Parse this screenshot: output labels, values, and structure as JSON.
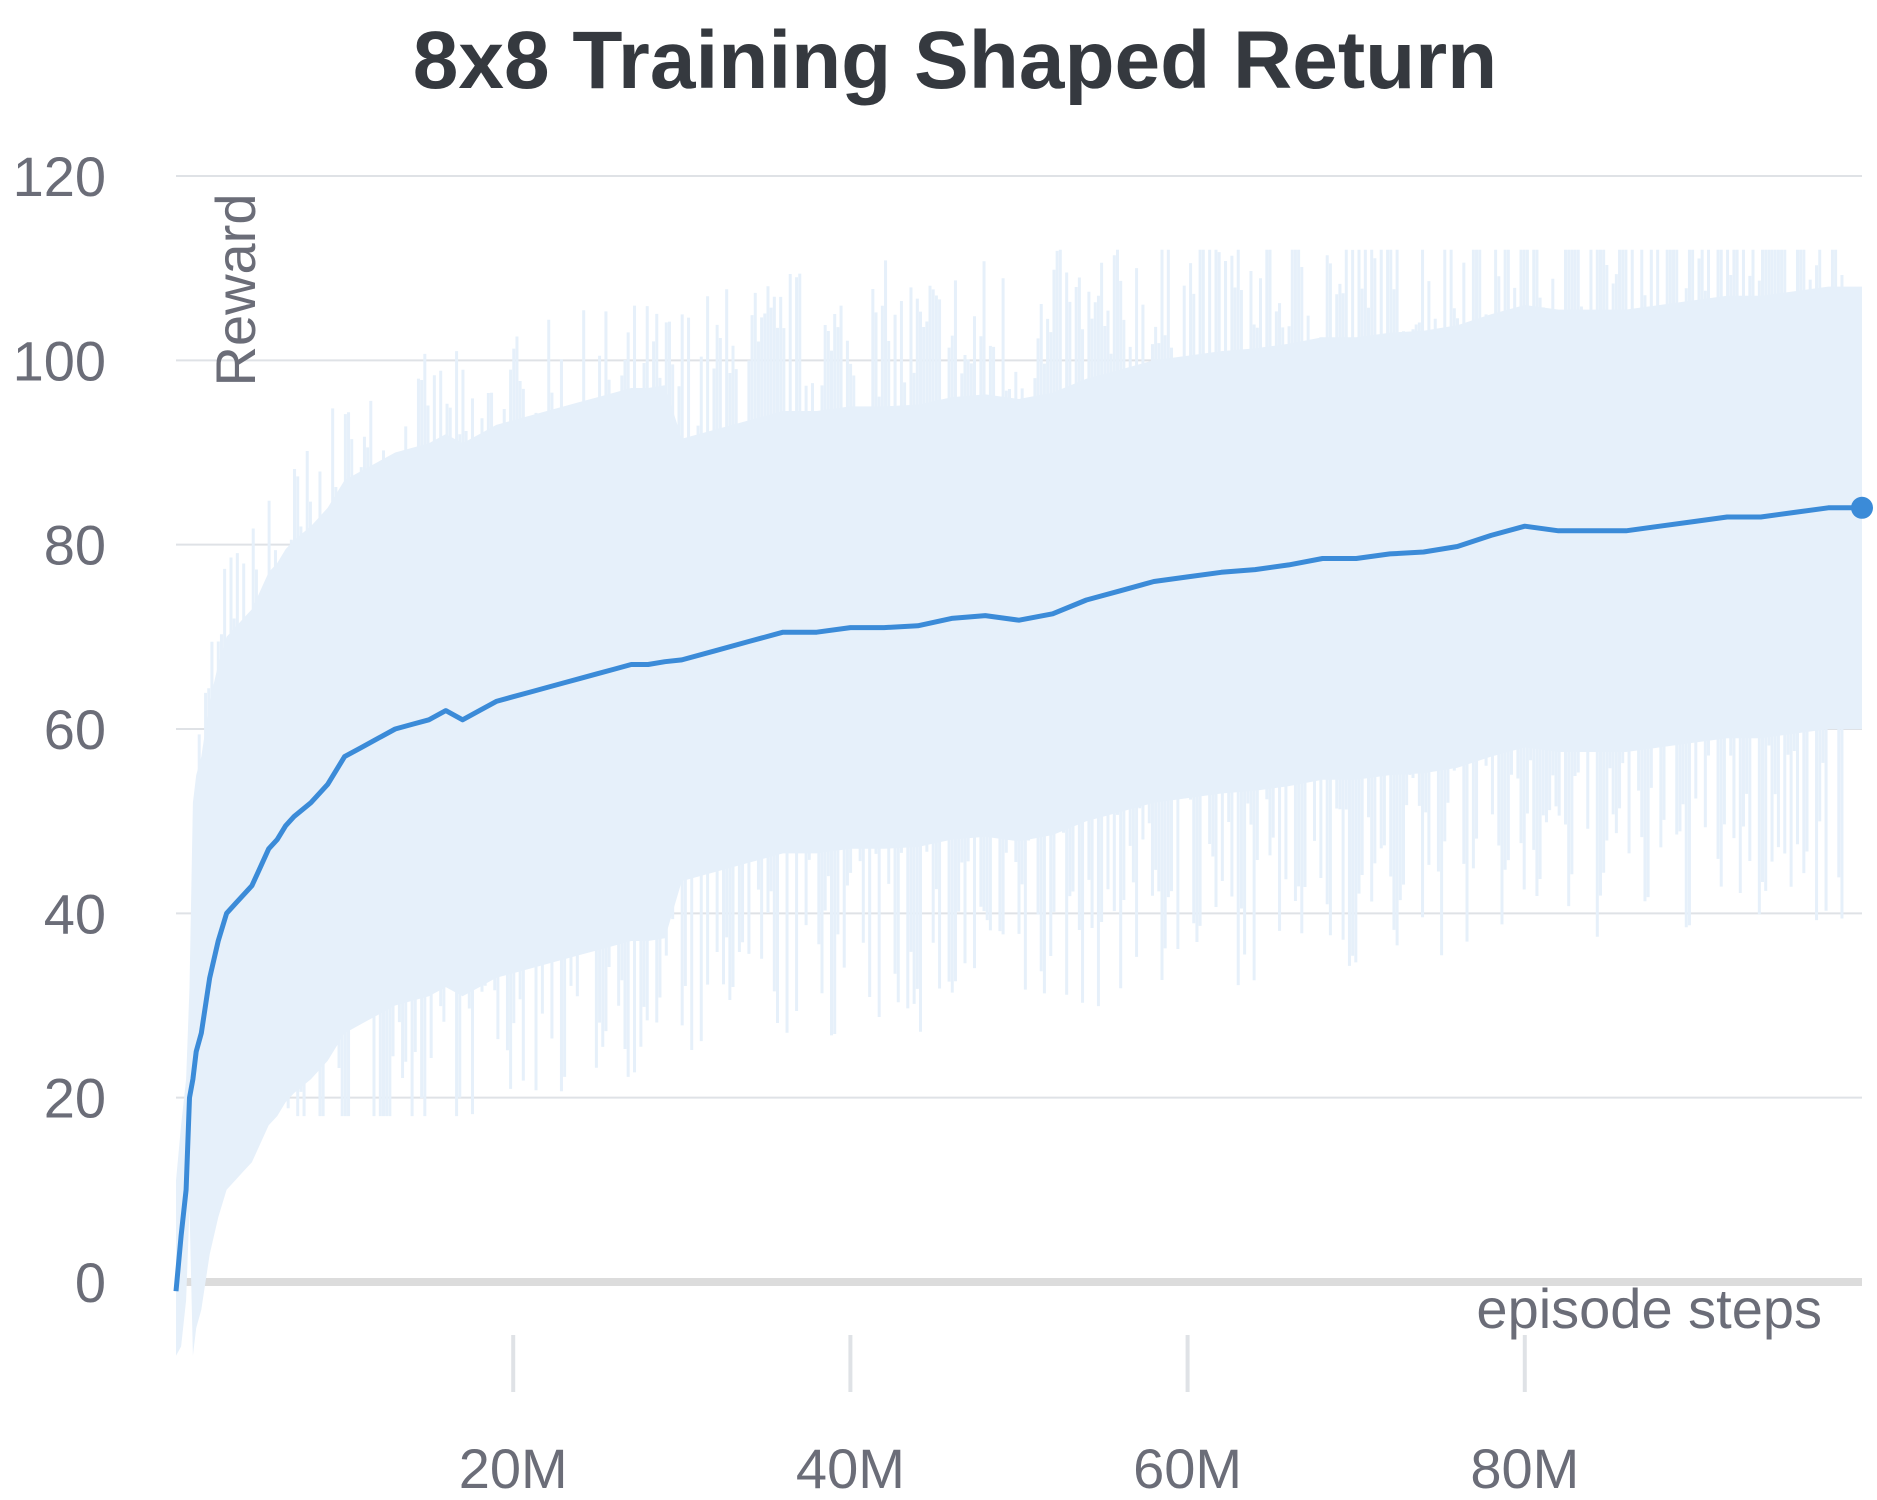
{
  "chart_data": {
    "type": "line",
    "title": "8x8 Training Shaped Return",
    "xlabel": "episode steps",
    "ylabel": "Reward",
    "x_ticks": [
      "20M",
      "40M",
      "60M",
      "80M"
    ],
    "x_tick_values": [
      20000000,
      40000000,
      60000000,
      80000000
    ],
    "y_ticks": [
      "0",
      "20",
      "40",
      "60",
      "80",
      "100",
      "120"
    ],
    "y_tick_values": [
      0,
      20,
      40,
      60,
      80,
      100,
      120
    ],
    "xlim": [
      0,
      100000000
    ],
    "ylim": [
      -10,
      120
    ],
    "grid": true,
    "colors": {
      "line": "#3b8bd8",
      "band": "#e6f0fa",
      "grid": "#dfe2e6",
      "zero_line": "#dcdcdc"
    },
    "series": [
      {
        "x": [
          0,
          300000,
          600000,
          800000,
          1000000,
          1200000,
          1500000,
          2000000,
          2500000,
          3000000,
          3500000,
          4000000,
          4500000,
          5000000,
          5500000,
          6000000,
          6500000,
          7000000,
          8000000,
          9000000,
          10000000,
          11000000,
          12000000,
          13000000,
          14000000,
          15000000,
          16000000,
          17000000,
          18000000,
          19000000,
          20000000,
          21000000,
          22000000,
          23000000,
          24000000,
          25000000,
          26000000,
          27000000,
          28000000,
          29000000,
          30000000,
          32000000,
          34000000,
          36000000,
          38000000,
          40000000,
          42000000,
          44000000,
          46000000,
          48000000,
          50000000,
          52000000,
          54000000,
          56000000,
          58000000,
          60000000,
          62000000,
          64000000,
          66000000,
          68000000,
          70000000,
          72000000,
          74000000,
          76000000,
          78000000,
          80000000,
          82000000,
          84000000,
          86000000,
          88000000,
          90000000,
          92000000,
          94000000,
          96000000,
          98000000,
          100000000
        ],
        "y": [
          -1,
          5,
          10,
          20,
          22,
          25,
          27,
          33,
          37,
          40,
          41,
          42,
          43,
          45,
          47,
          48,
          49.5,
          50.5,
          52,
          54,
          57,
          58,
          59,
          60,
          60.5,
          61,
          62,
          61,
          62,
          63,
          63.5,
          64,
          64.5,
          65,
          65.5,
          66,
          66.5,
          67,
          67,
          67.3,
          67.5,
          68.5,
          69.5,
          70.5,
          70.5,
          71,
          71,
          71.2,
          72,
          72.3,
          71.8,
          72.5,
          74,
          75,
          76,
          76.5,
          77,
          77.3,
          77.8,
          78.5,
          78.5,
          79,
          79.2,
          79.8,
          81,
          82,
          81.5,
          81.5,
          81.5,
          82,
          82.5,
          83,
          83,
          83.5,
          84,
          84
        ]
      }
    ]
  }
}
